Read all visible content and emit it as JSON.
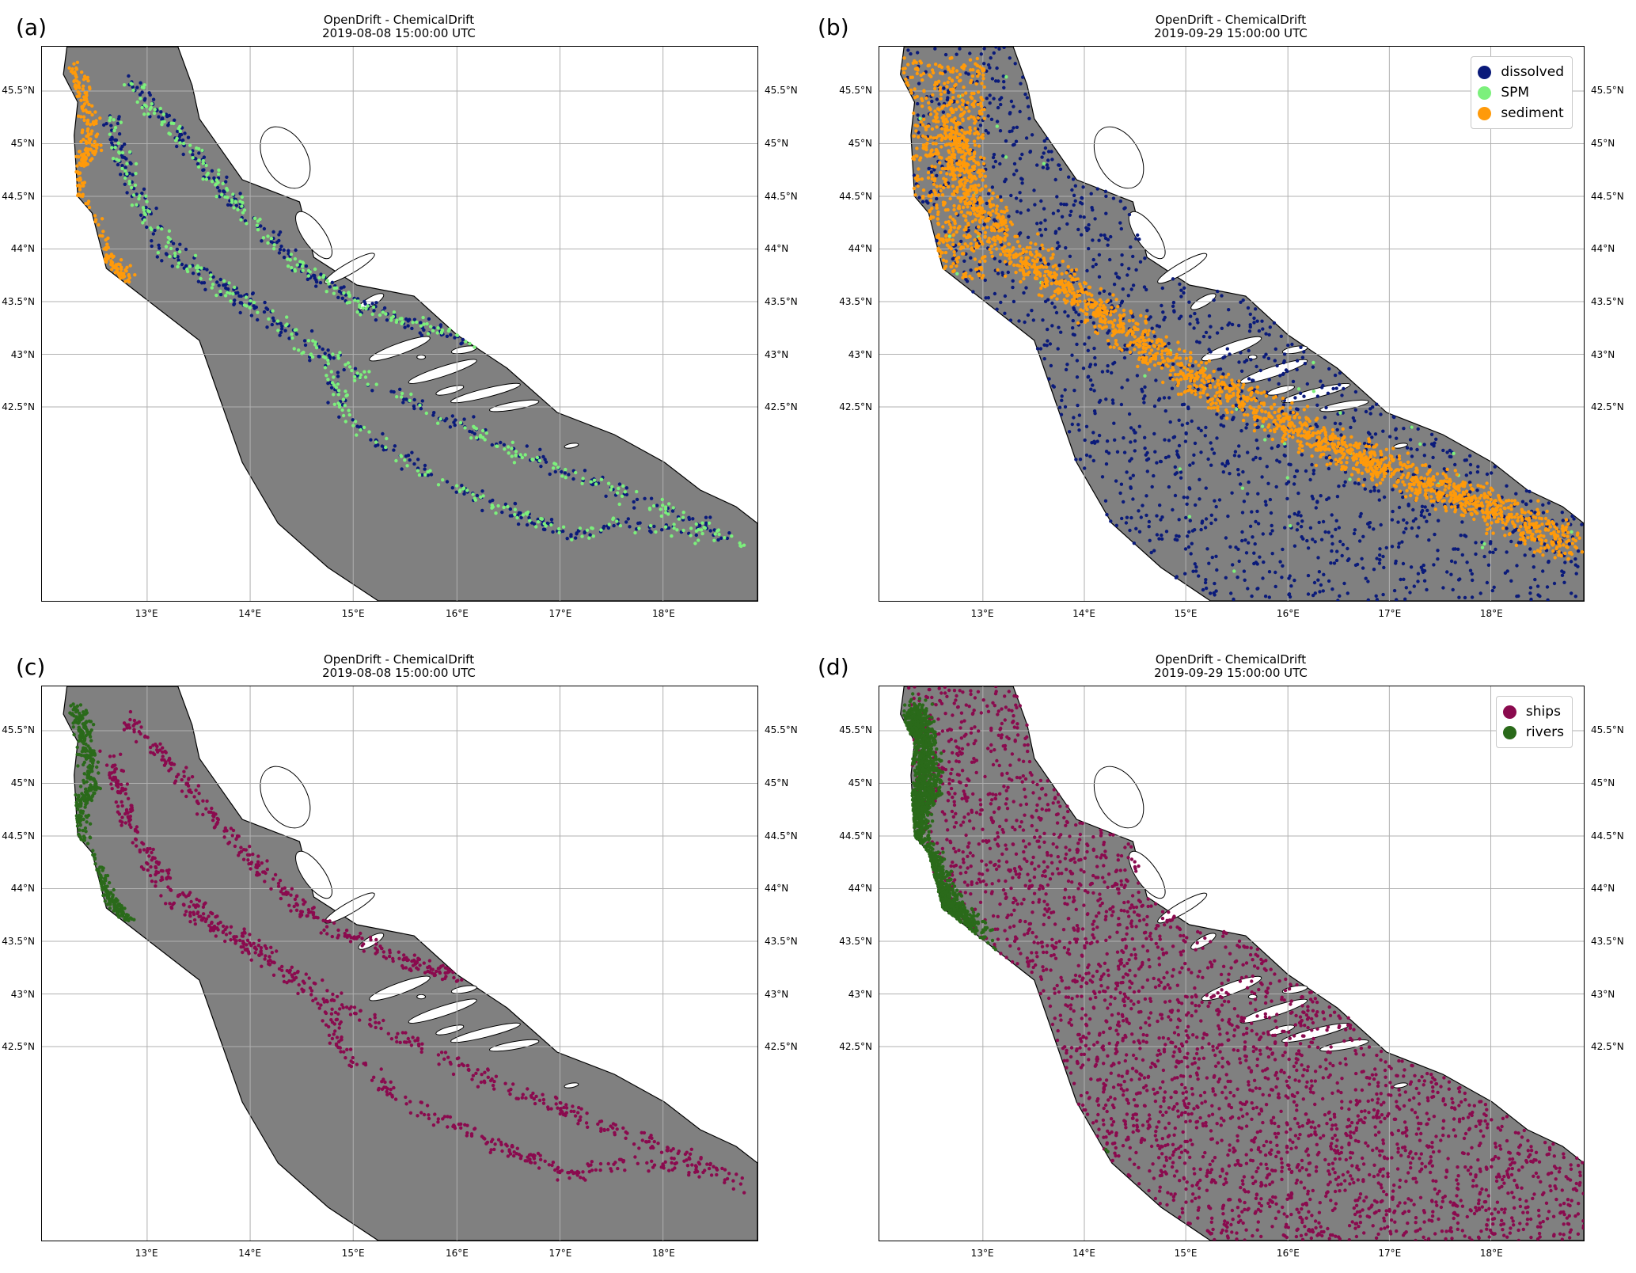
{
  "panels": [
    {
      "label": "(a)",
      "title": "OpenDrift - ChemicalDrift",
      "date": "2019-08-08 15:00:00 UTC",
      "series": [
        {
          "name": "dissolved",
          "color": "#0a1a7a",
          "count": 620,
          "mode": "paths"
        },
        {
          "name": "SPM",
          "color": "#7cf07c",
          "count": 520,
          "mode": "paths"
        },
        {
          "name": "sediment",
          "color": "#ff9a0a",
          "count": 260,
          "mode": "coast"
        }
      ],
      "legend": false
    },
    {
      "label": "(b)",
      "title": "OpenDrift - ChemicalDrift",
      "date": "2019-09-29 15:00:00 UTC",
      "series": [
        {
          "name": "dissolved",
          "color": "#0a1a7a",
          "count": 1500,
          "mode": "spread"
        },
        {
          "name": "SPM",
          "color": "#7cf07c",
          "count": 40,
          "mode": "spread"
        },
        {
          "name": "sediment",
          "color": "#ff9a0a",
          "count": 2600,
          "mode": "band"
        }
      ],
      "legend": true
    },
    {
      "label": "(c)",
      "title": "OpenDrift - ChemicalDrift",
      "date": "2019-08-08 15:00:00 UTC",
      "series": [
        {
          "name": "ships",
          "color": "#8a0a4e",
          "count": 1100,
          "mode": "paths"
        },
        {
          "name": "rivers",
          "color": "#2a6a1a",
          "count": 420,
          "mode": "coast"
        }
      ],
      "legend": false
    },
    {
      "label": "(d)",
      "title": "OpenDrift - ChemicalDrift",
      "date": "2019-09-29 15:00:00 UTC",
      "series": [
        {
          "name": "ships",
          "color": "#8a0a4e",
          "count": 3000,
          "mode": "spread"
        },
        {
          "name": "rivers",
          "color": "#2a6a1a",
          "count": 1600,
          "mode": "coastwide"
        }
      ],
      "legend": true
    }
  ],
  "axes": {
    "lat_ticks": [
      "45.5°N",
      "45°N",
      "44.5°N",
      "44°N",
      "43.5°N",
      "43°N",
      "42.5°N"
    ],
    "lon_ticks": [
      "13°E",
      "14°E",
      "15°E",
      "16°E",
      "17°E",
      "18°E"
    ]
  },
  "map_colors": {
    "sea": "#808080",
    "land": "#ffffff",
    "grid": "#b0b0b0"
  }
}
